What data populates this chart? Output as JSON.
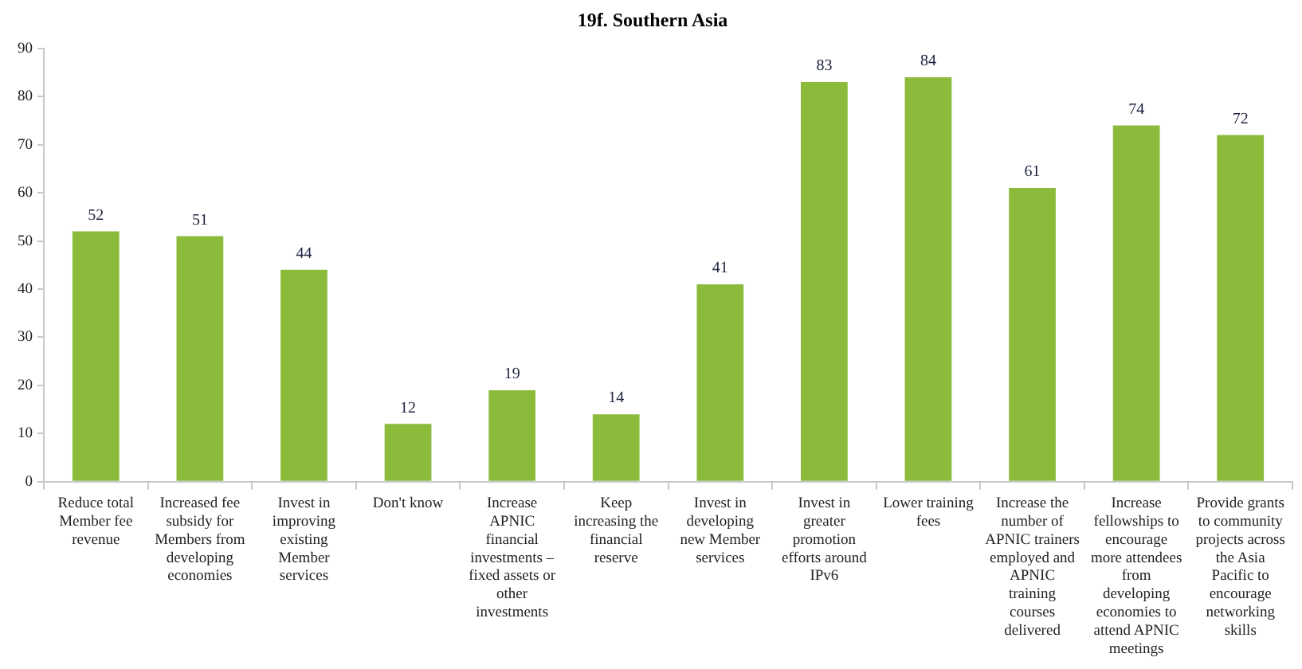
{
  "chart_data": {
    "type": "bar",
    "title": "19f. Southern Asia",
    "categories": [
      "Reduce total Member fee revenue",
      "Increased fee subsidy for Members from developing economies",
      "Invest in improving existing Member services",
      "Don't know",
      "Increase APNIC financial investments – fixed assets or other investments",
      "Keep increasing the financial reserve",
      "Invest in developing new Member services",
      "Invest in greater promotion efforts around IPv6",
      "Lower training fees",
      "Increase the number of APNIC trainers employed and APNIC training courses delivered",
      "Increase fellowships to encourage more attendees from developing economies to attend APNIC meetings",
      "Provide grants to community projects across the Asia Pacific to encourage networking skills"
    ],
    "values": [
      52,
      51,
      44,
      12,
      19,
      14,
      41,
      83,
      84,
      61,
      74,
      72
    ],
    "color": "#8cbb3c",
    "ylim": [
      0,
      90
    ],
    "yticks": [
      0,
      10,
      20,
      30,
      40,
      50,
      60,
      70,
      80,
      90
    ],
    "grid": false,
    "data_labels": true
  }
}
